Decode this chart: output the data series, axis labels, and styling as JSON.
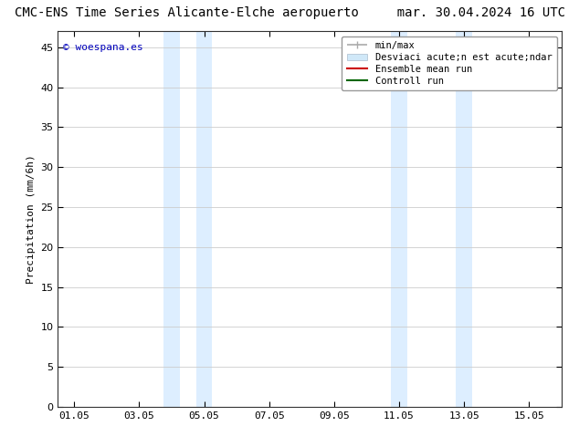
{
  "title_left": "CMC-ENS Time Series Alicante-Elche aeropuerto",
  "title_right": "mar. 30.04.2024 16 UTC",
  "ylabel": "Precipitation (mm/6h)",
  "watermark": "© woespana.es",
  "ylim": [
    0,
    47
  ],
  "yticks": [
    0,
    5,
    10,
    15,
    20,
    25,
    30,
    35,
    40,
    45
  ],
  "xtick_labels": [
    "01.05",
    "03.05",
    "05.05",
    "07.05",
    "09.05",
    "11.05",
    "13.05",
    "15.05"
  ],
  "xtick_positions": [
    1,
    3,
    5,
    7,
    9,
    11,
    13,
    15
  ],
  "xlim": [
    0.5,
    16.0
  ],
  "shaded_regions": [
    {
      "xstart": 3.75,
      "xend": 4.25,
      "color": "#ddeeff"
    },
    {
      "xstart": 4.75,
      "xend": 5.25,
      "color": "#ddeeff"
    },
    {
      "xstart": 10.75,
      "xend": 11.25,
      "color": "#ddeeff"
    },
    {
      "xstart": 12.75,
      "xend": 13.25,
      "color": "#ddeeff"
    }
  ],
  "legend_label_1": "min/max",
  "legend_label_2": "Desviaci acute;n est acute;ndar",
  "legend_label_3": "Ensemble mean run",
  "legend_label_4": "Controll run",
  "color_minmax": "#aaaaaa",
  "color_std": "#d0e8f8",
  "color_ensemble": "#cc0000",
  "color_control": "#006600",
  "background_color": "#ffffff",
  "grid_color": "#cccccc",
  "title_fontsize": 10,
  "axis_fontsize": 8,
  "legend_fontsize": 7.5,
  "watermark_color": "#0000bb",
  "watermark_fontsize": 8
}
